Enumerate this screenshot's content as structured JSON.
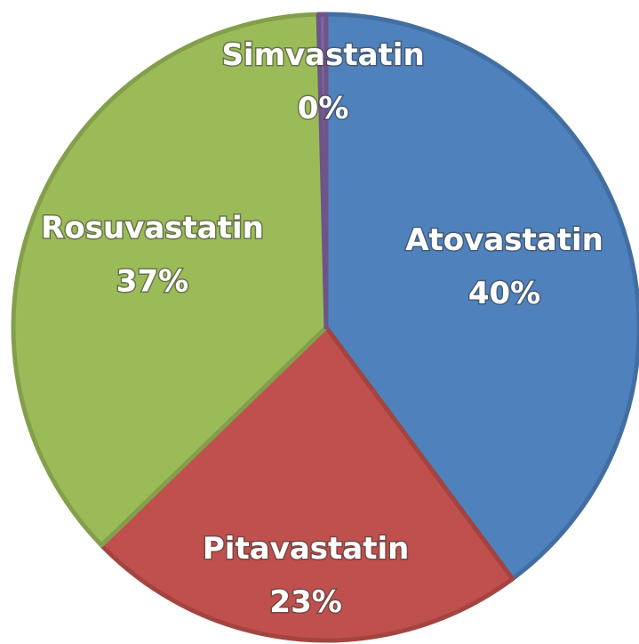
{
  "chart_data": {
    "type": "pie",
    "categories": [
      "Atovastatin",
      "Pitavastatin",
      "Rosuvastatin",
      "Simvastatin"
    ],
    "values": [
      40,
      23,
      37,
      0.4
    ],
    "value_labels": [
      "40%",
      "23%",
      "37%",
      "0%"
    ],
    "colors": [
      "#4f81bd",
      "#c0504d",
      "#9bbb59",
      "#8064a2"
    ]
  }
}
